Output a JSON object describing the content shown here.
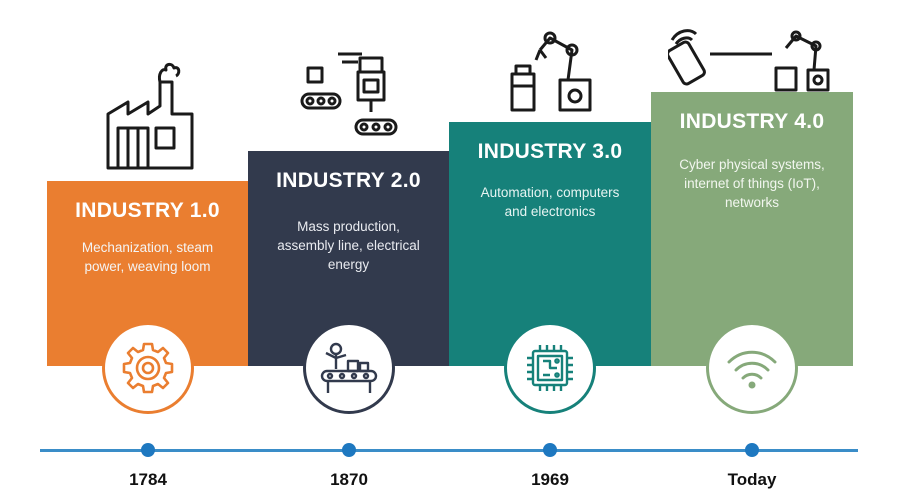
{
  "stages": [
    {
      "title": "INDUSTRY 1.0",
      "description": "Mechanization, steam power, weaving loom",
      "year": "1784",
      "icon": "gear-icon",
      "top_icon": "factory-icon",
      "color": "#ea7e30"
    },
    {
      "title": "INDUSTRY 2.0",
      "description": "Mass production, assembly line, electrical energy",
      "year": "1870",
      "icon": "assembly-worker-icon",
      "top_icon": "conveyor-machine-icon",
      "color": "#323a4d"
    },
    {
      "title": "INDUSTRY 3.0",
      "description": "Automation, computers and electronics",
      "year": "1969",
      "icon": "microchip-icon",
      "top_icon": "robot-arm-icon",
      "color": "#16817a"
    },
    {
      "title": "INDUSTRY 4.0",
      "description": "Cyber physical systems, internet of things (IoT), networks",
      "year": "Today",
      "icon": "wifi-icon",
      "top_icon": "connected-robot-icon",
      "color": "#86a97a"
    }
  ],
  "timeline_color": "#3a8dc8"
}
